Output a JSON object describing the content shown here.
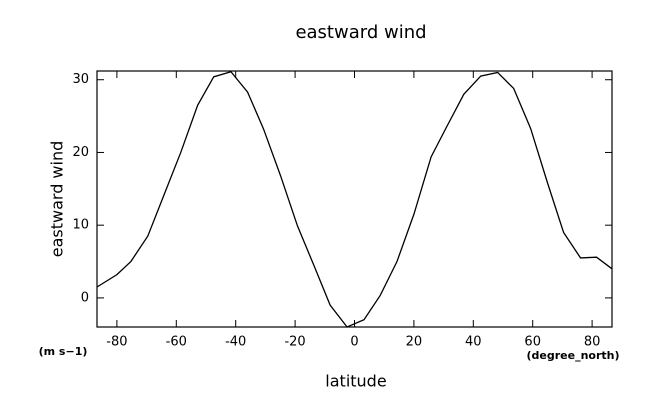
{
  "chart_data": {
    "type": "line",
    "title": "eastward wind",
    "xlabel": "latitude",
    "ylabel": "eastward wind",
    "x_units": "(degree_north)",
    "y_units": "(m s−1)",
    "x": [
      -86.7,
      -80,
      -75.3,
      -69.6,
      -64.3,
      -58.5,
      -52.8,
      -47.4,
      -41.6,
      -36,
      -30.6,
      -24.9,
      -19.2,
      -13.6,
      -8.2,
      -2.5,
      3.2,
      8.6,
      14.3,
      20,
      25.8,
      31,
      36.8,
      42.5,
      48.2,
      53.6,
      59.3,
      65,
      70.4,
      76.1,
      81.5,
      86.7
    ],
    "series": [
      {
        "name": "eastward wind",
        "color": "#000000",
        "values": [
          1.5,
          3.2,
          5,
          8.5,
          14,
          20,
          26.5,
          30.4,
          31.1,
          28.3,
          23.2,
          16.8,
          9.9,
          4.4,
          -1,
          -4,
          -3,
          0.3,
          5,
          11.5,
          19.4,
          23.5,
          28,
          30.5,
          31,
          28.8,
          23.3,
          15.8,
          9,
          5.5,
          5.6,
          4
        ]
      }
    ],
    "xlim": [
      -86.7,
      86.7
    ],
    "ylim": [
      -4,
      31.2
    ],
    "xticks": [
      -80,
      -60,
      -40,
      -20,
      0,
      20,
      40,
      60,
      80
    ],
    "yticks": [
      0,
      10,
      20,
      30
    ]
  }
}
